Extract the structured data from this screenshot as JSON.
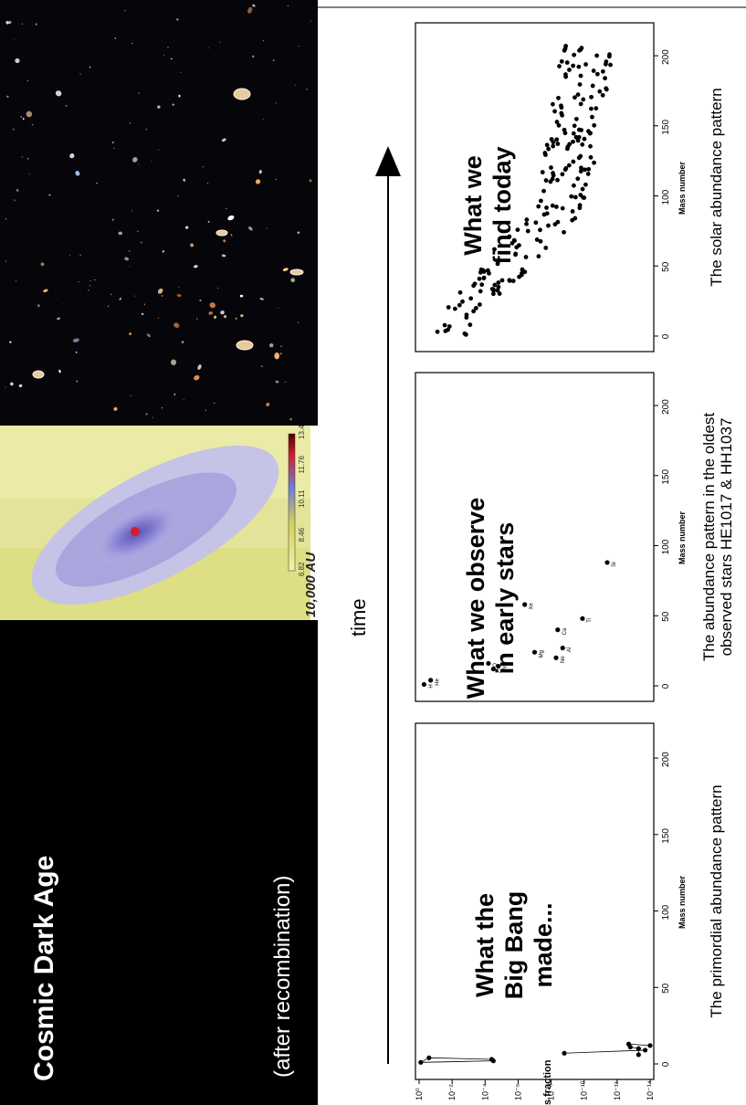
{
  "top_row": {
    "dark_panel": {
      "title": "Cosmic Dark Age",
      "subtitle": "(after recombination)",
      "background": "#000000",
      "text_color": "#ffffff"
    },
    "simulation_panel": {
      "scale_label": "10,000 AU",
      "colorbar_ticks": [
        "6.82",
        "8.46",
        "10.11",
        "11.76",
        "13.41"
      ],
      "colors": {
        "outer": "#e7e59b",
        "cloud": "#b7b4e3",
        "core": "#d21d2a"
      }
    },
    "deep_field_panel": {
      "background": "#05050a"
    }
  },
  "timeline": {
    "label": "time"
  },
  "charts": {
    "mass_number_label": "Mass number",
    "mass_fraction_label": "Mass fraction",
    "x_ticks": [
      "0",
      "50",
      "100",
      "150",
      "200"
    ],
    "y_ticks": [
      "10⁰",
      "10⁻²",
      "10⁻⁴",
      "10⁻⁶",
      "10⁻⁸",
      "10⁻¹⁰",
      "10⁻¹²",
      "10⁻¹⁴"
    ]
  },
  "chart_data": [
    {
      "type": "line",
      "annotation": "What the Big Bang made...",
      "annotation_lines": [
        "What the",
        "Big Bang",
        "made..."
      ],
      "caption": "The primordial abundance pattern",
      "xlabel": "Mass number",
      "ylabel": "Mass fraction",
      "xlim": [
        0,
        215
      ],
      "ylim_log10": [
        -14,
        0
      ],
      "points": [
        {
          "x": 1,
          "y": -0.1
        },
        {
          "x": 2,
          "y": -4.5
        },
        {
          "x": 3,
          "y": -4.4
        },
        {
          "x": 4,
          "y": -0.6
        },
        {
          "x": 6,
          "y": -13.3
        },
        {
          "x": 7,
          "y": -8.8
        },
        {
          "x": 9,
          "y": -13.7
        },
        {
          "x": 10,
          "y": -13.3
        },
        {
          "x": 11,
          "y": -12.8
        },
        {
          "x": 12,
          "y": -14.0
        },
        {
          "x": 13,
          "y": -12.7
        }
      ],
      "connections": [
        [
          0,
          1
        ],
        [
          1,
          2
        ],
        [
          2,
          3
        ],
        [
          3,
          0
        ],
        [
          5,
          6
        ],
        [
          4,
          7
        ],
        [
          7,
          8
        ],
        [
          9,
          10
        ]
      ]
    },
    {
      "type": "scatter",
      "annotation": "What we observe in early stars",
      "annotation_lines": [
        "What we observe",
        "in early stars"
      ],
      "caption": "The abundance pattern in the oldest observed stars HE1017 & HH1037",
      "caption_lines": [
        "The abundance pattern in the oldest",
        "observed stars HE1017 & HH1037"
      ],
      "xlabel": "Mass number",
      "xlim": [
        0,
        215
      ],
      "points": [
        {
          "x": 1,
          "y": -0.3,
          "label": "H"
        },
        {
          "x": 4,
          "y": -0.7,
          "label": "He"
        },
        {
          "x": 12,
          "y": -4.5,
          "label": "C"
        },
        {
          "x": 14,
          "y": -4.8,
          "label": "N"
        },
        {
          "x": 16,
          "y": -4.2,
          "label": "O"
        },
        {
          "x": 24,
          "y": -7.0,
          "label": "Mg"
        },
        {
          "x": 20,
          "y": -8.3,
          "label": "Ne"
        },
        {
          "x": 27,
          "y": -8.7,
          "label": "Al"
        },
        {
          "x": 40,
          "y": -8.4,
          "label": "Ca"
        },
        {
          "x": 48,
          "y": -9.9,
          "label": "Ti"
        },
        {
          "x": 58,
          "y": -6.4,
          "label": "Xe"
        },
        {
          "x": 88,
          "y": -11.4,
          "label": "Sr"
        }
      ]
    },
    {
      "type": "scatter",
      "annotation": "What we find today",
      "annotation_lines": [
        "What we",
        "find today"
      ],
      "caption": "The solar abundance pattern",
      "xlabel": "Mass number",
      "xlim": [
        0,
        215
      ],
      "point_count": 200
    }
  ]
}
